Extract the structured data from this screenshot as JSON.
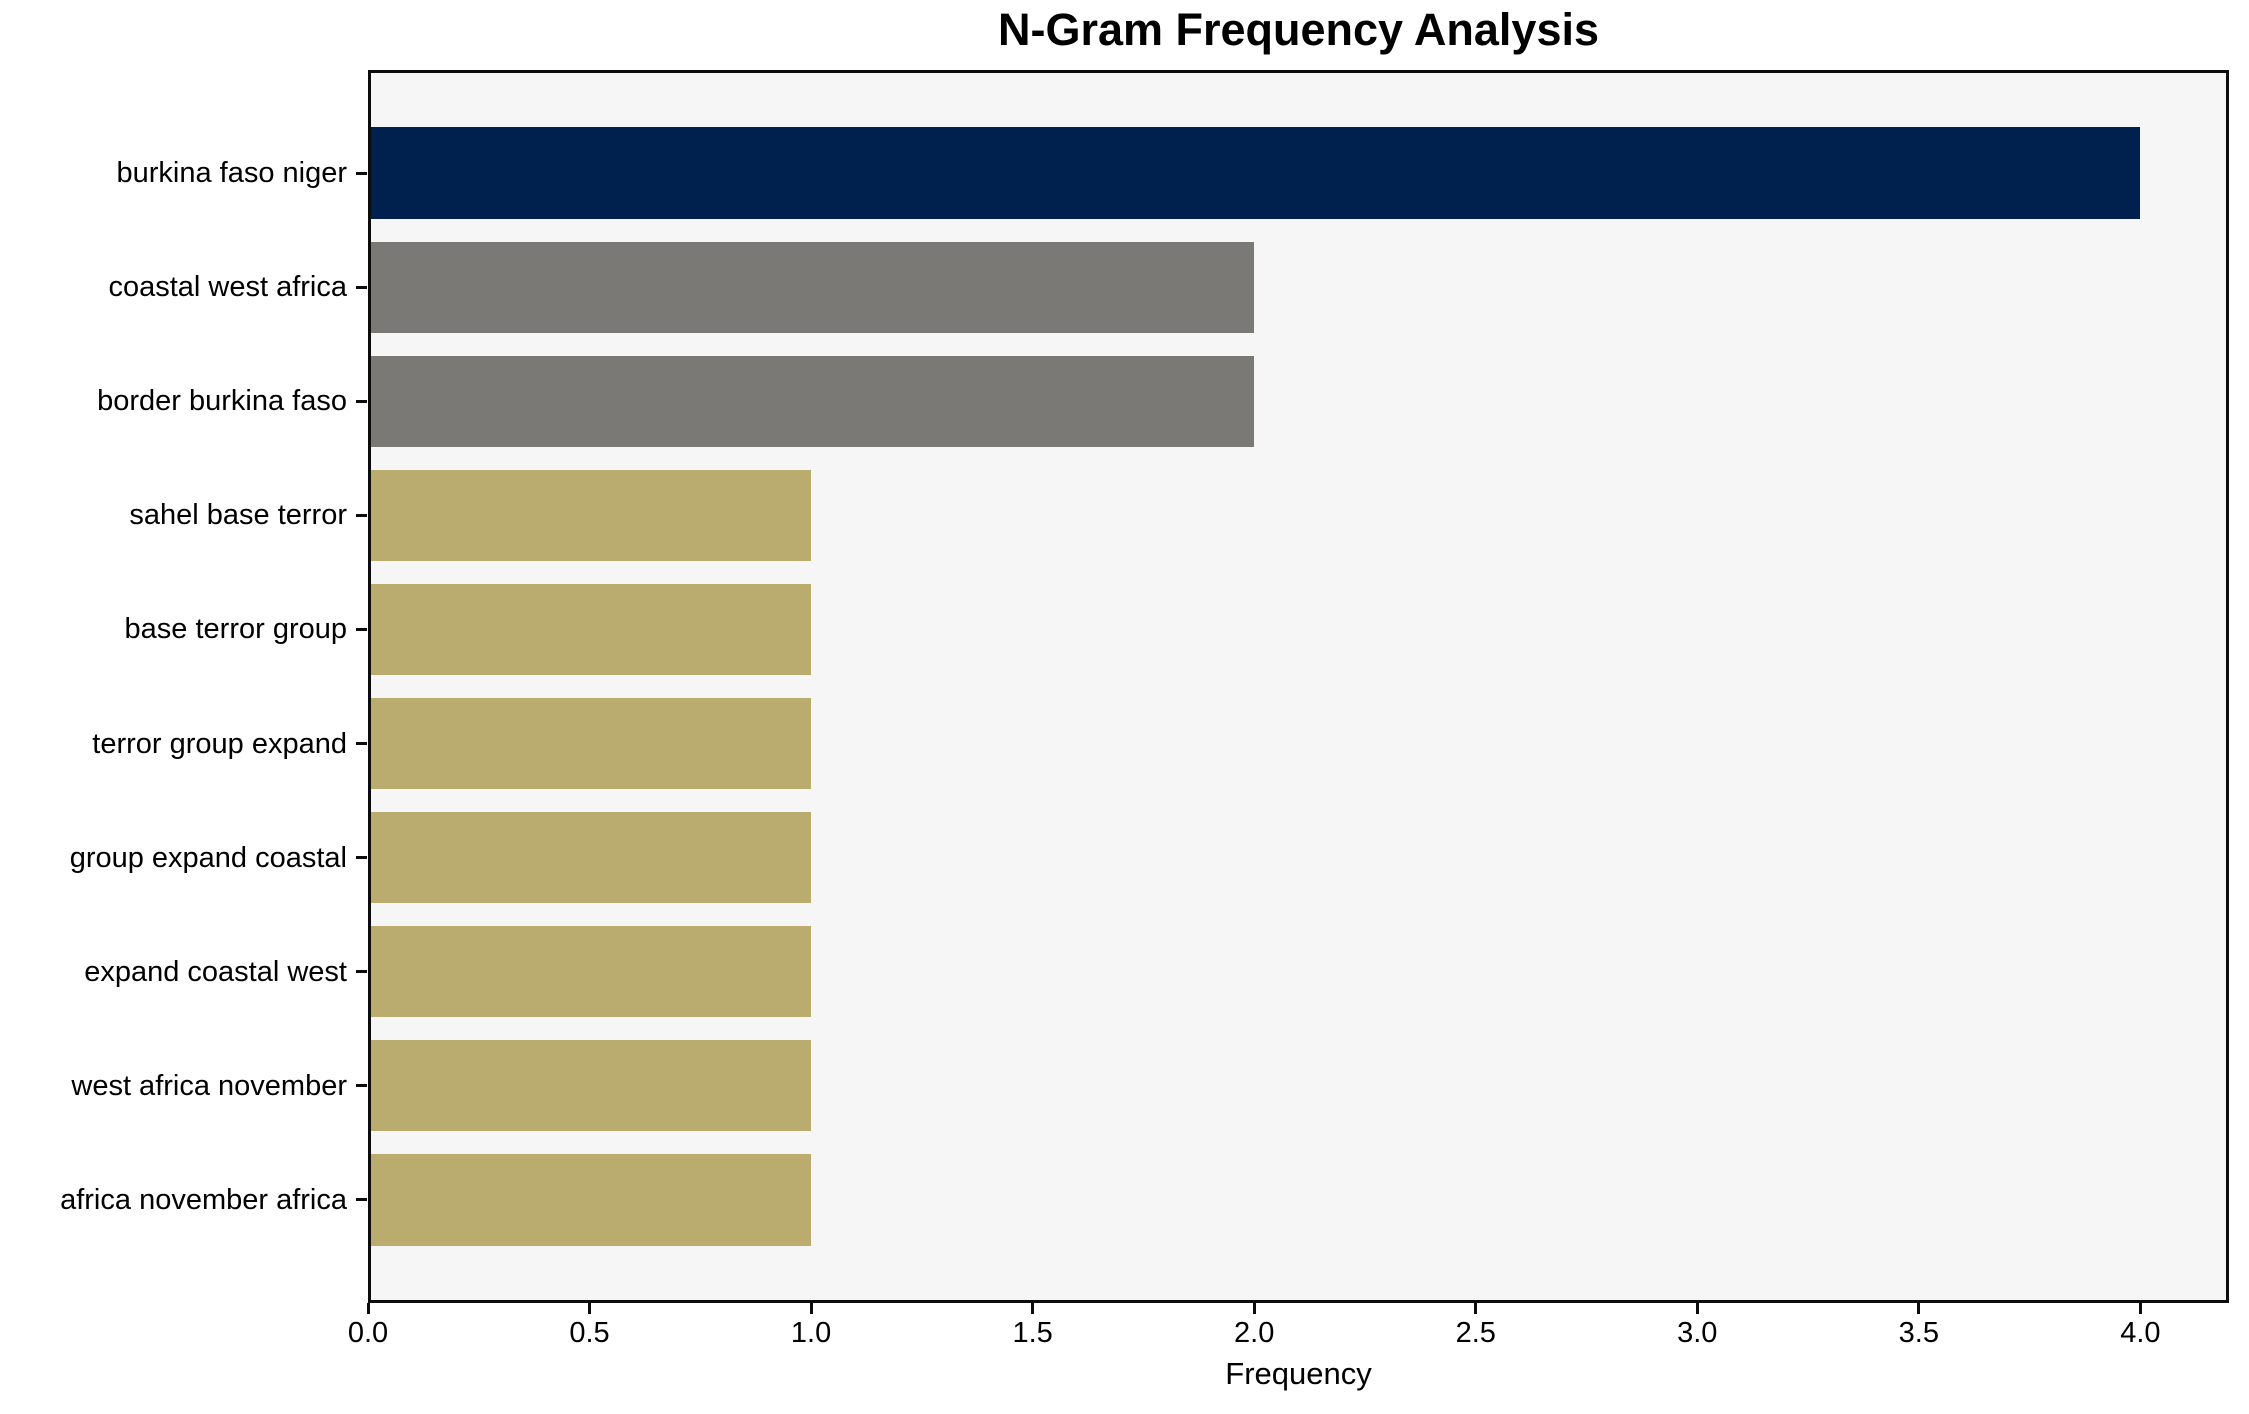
{
  "chart_data": {
    "type": "bar",
    "orientation": "horizontal",
    "title": "N-Gram Frequency Analysis",
    "xlabel": "Frequency",
    "ylabel": "",
    "categories": [
      "burkina faso niger",
      "coastal west africa",
      "border burkina faso",
      "sahel base terror",
      "base terror group",
      "terror group expand",
      "group expand coastal",
      "expand coastal west",
      "west africa november",
      "africa november africa"
    ],
    "values": [
      4,
      2,
      2,
      1,
      1,
      1,
      1,
      1,
      1,
      1
    ],
    "bar_colors": [
      "#00214d",
      "#7a7975",
      "#7a7975",
      "#b9ac6e",
      "#b9ac6e",
      "#b9ac6e",
      "#b9ac6e",
      "#b9ac6e",
      "#b9ac6e",
      "#b9ac6e"
    ],
    "xlim": [
      0,
      4.2
    ],
    "xticks": [
      0.0,
      0.5,
      1.0,
      1.5,
      2.0,
      2.5,
      3.0,
      3.5,
      4.0
    ],
    "xtick_labels": [
      "0.0",
      "0.5",
      "1.0",
      "1.5",
      "2.0",
      "2.5",
      "3.0",
      "3.5",
      "4.0"
    ],
    "grid": false,
    "legend": null,
    "plot_background": "#f6f6f6",
    "figure_background": "#ffffff",
    "spine_color": "#0c0c0c",
    "colors": {
      "top_bar": "#00214d",
      "mid_bars": "#7a7975",
      "low_bars": "#b9ac6e"
    }
  }
}
